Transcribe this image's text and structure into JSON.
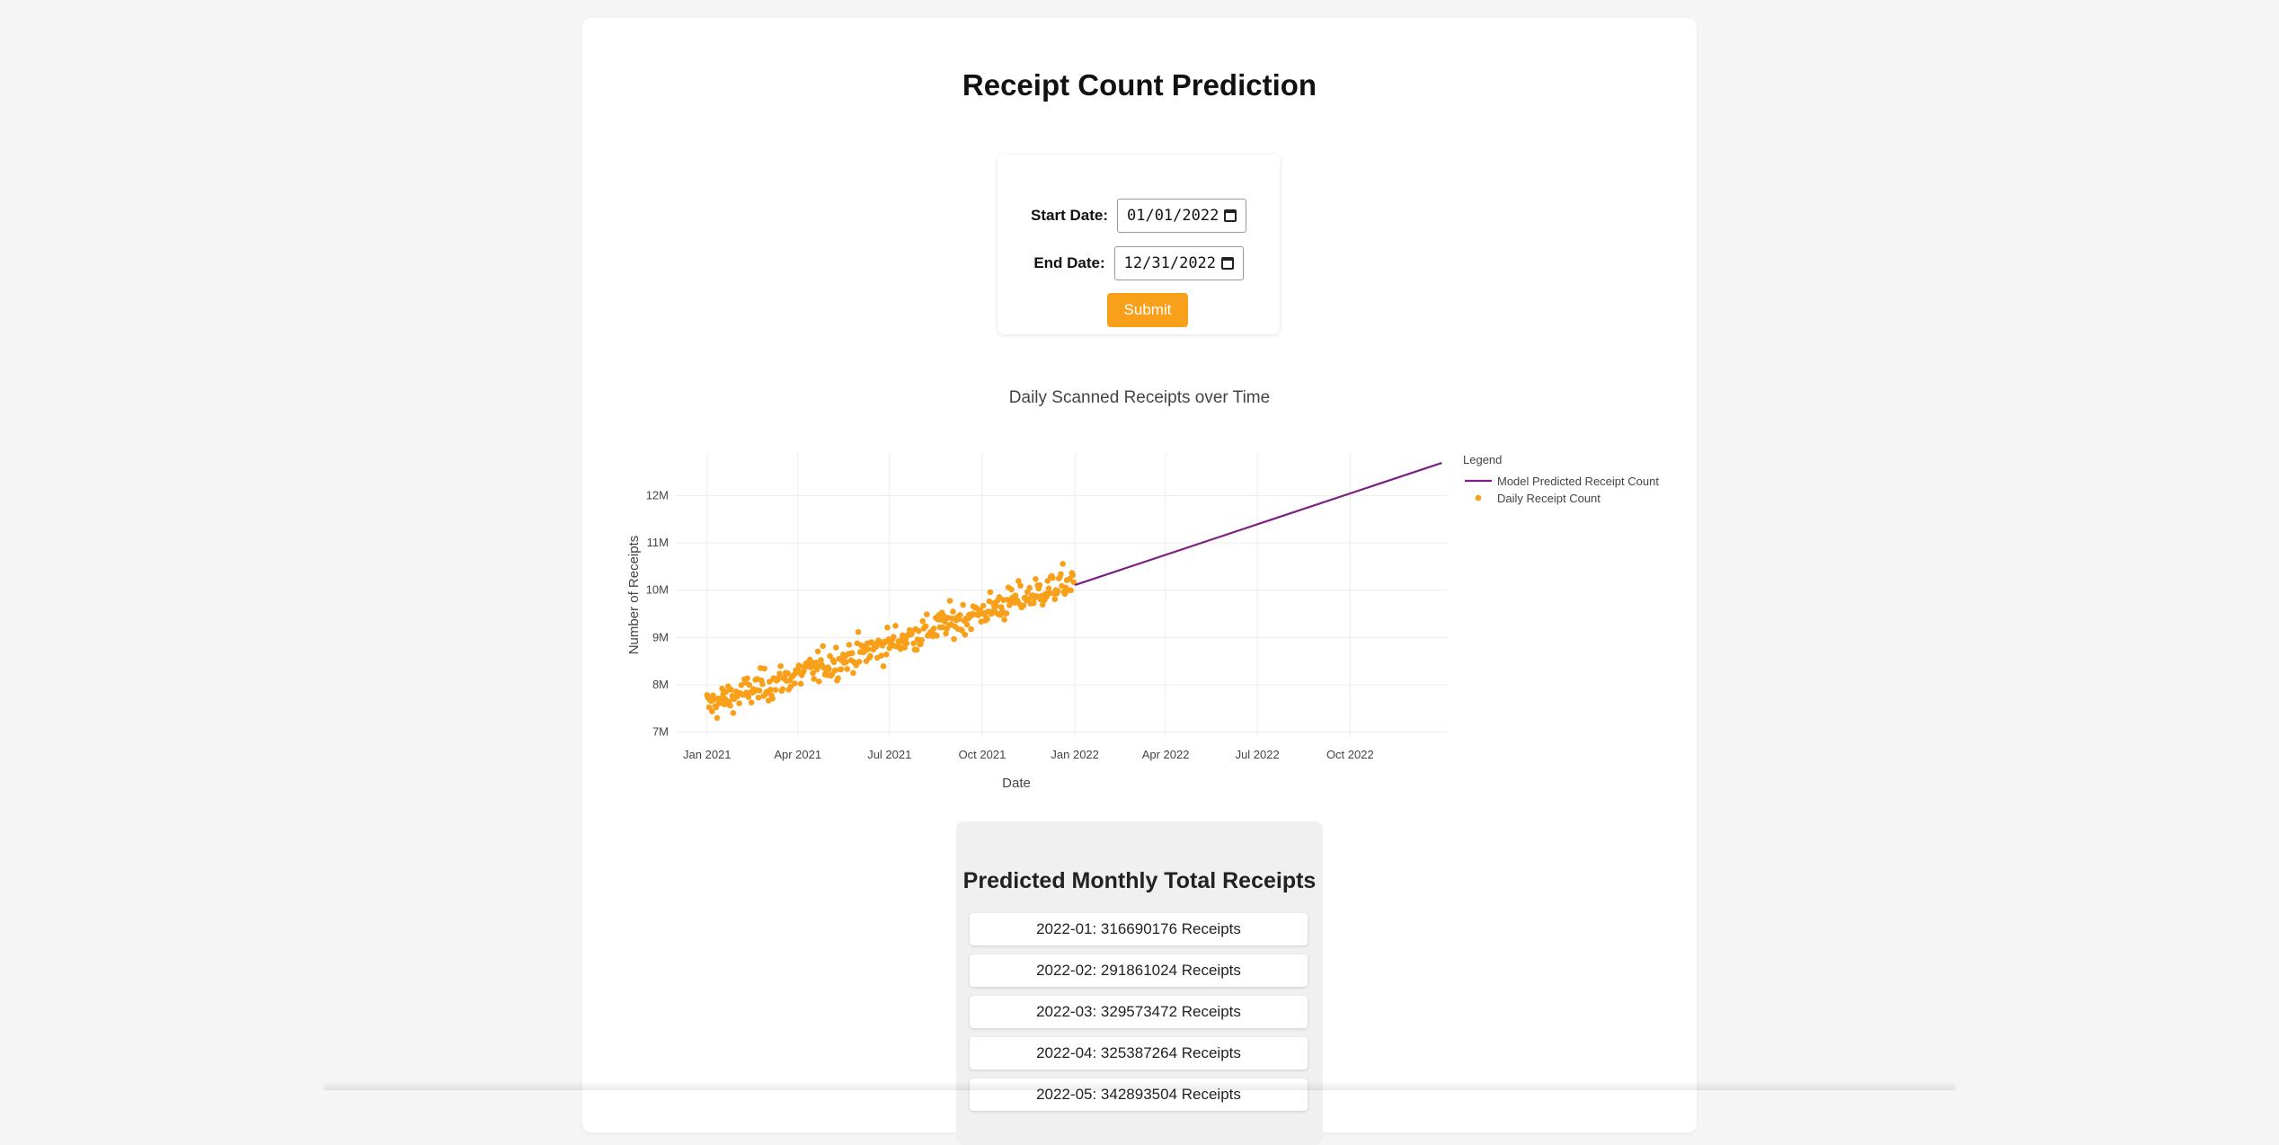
{
  "page_title": "Receipt Count Prediction",
  "form": {
    "start_label": "Start Date:",
    "start_value": "01/01/2022",
    "end_label": "End Date:",
    "end_value": "12/31/2022",
    "submit_label": "Submit"
  },
  "chart_data": {
    "type": "scatter",
    "title": "Daily Scanned Receipts over Time",
    "xlabel": "Date",
    "ylabel": "Number of Receipts",
    "x_tick_labels": [
      "Jan 2021",
      "Apr 2021",
      "Jul 2021",
      "Oct 2021",
      "Jan 2022",
      "Apr 2022",
      "Jul 2022",
      "Oct 2022"
    ],
    "y_tick_labels": [
      "7M",
      "8M",
      "9M",
      "10M",
      "11M",
      "12M"
    ],
    "x_range": [
      "2020-12-01",
      "2023-01-05"
    ],
    "ylim": [
      6900000,
      12900000
    ],
    "grid": true,
    "legend_title": "Legend",
    "legend_position": "top-right",
    "colors": {
      "predicted": "#7b1f84",
      "actual": "#f9a01b"
    },
    "series": [
      {
        "name": "Model Predicted Receipt Count",
        "mode": "line",
        "x": [
          "2022-01-01",
          "2022-12-31"
        ],
        "y": [
          10110000,
          12690000
        ]
      },
      {
        "name": "Daily Receipt Count",
        "mode": "markers",
        "trend": {
          "x": [
            "2021-01-01",
            "2021-12-31"
          ],
          "y": [
            7560000,
            10200000
          ]
        },
        "noise_stdev": 170000,
        "count": 365
      }
    ]
  },
  "results": {
    "title": "Predicted Monthly Total Receipts",
    "items": [
      "2022-01: 316690176 Receipts",
      "2022-02: 291861024 Receipts",
      "2022-03: 329573472 Receipts",
      "2022-04: 325387264 Receipts",
      "2022-05: 342893504 Receipts"
    ]
  }
}
